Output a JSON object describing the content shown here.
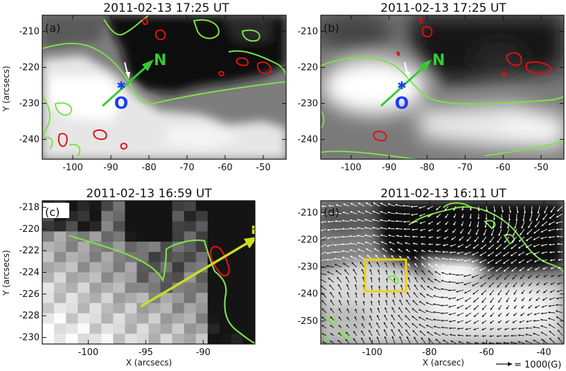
{
  "colors": {
    "contour_green": "#7ee04a",
    "contour_red": "#e01010",
    "arrow_green": "#33cc33",
    "arrow_yellow": "#ccdd22",
    "marker_blue": "#1a3cff",
    "box_yellow": "#f5d000",
    "vector_white": "#ffffff",
    "vector_black": "#111111"
  },
  "panels": [
    {
      "id": "a",
      "label": "(a)",
      "title": "2011-02-13 17:25 UT",
      "ylabel": "Y (arcsecs)",
      "xlabel": "",
      "xticks": [
        "-100",
        "-90",
        "-80",
        "-70",
        "-60",
        "-50"
      ],
      "yticks": [
        "-210",
        "-220",
        "-230",
        "-240"
      ],
      "xlim": [
        -108,
        -44
      ],
      "ylim": [
        -245.5,
        -205.5
      ],
      "annotations": {
        "arrow_label": "N",
        "origin_label": "O"
      }
    },
    {
      "id": "b",
      "label": "(b)",
      "title": "2011-02-13 17:25 UT",
      "ylabel": "",
      "xlabel": "",
      "xticks": [
        "-100",
        "-90",
        "-80",
        "-70",
        "-60",
        "-50"
      ],
      "yticks": [
        "-210",
        "-220",
        "-230",
        "-240"
      ],
      "xlim": [
        -108,
        -44
      ],
      "ylim": [
        -245.5,
        -205.5
      ],
      "annotations": {
        "arrow_label": "N",
        "origin_label": "O"
      }
    },
    {
      "id": "c",
      "label": "(c)",
      "title": "2011-02-13 16:59 UT",
      "ylabel": "Y (arcsecs)",
      "xlabel": "X (arcsecs)",
      "xticks": [
        "-100",
        "-95",
        "-90"
      ],
      "yticks": [
        "-218",
        "-220",
        "-222",
        "-224",
        "-226",
        "-228",
        "-230"
      ],
      "xlim": [
        -104,
        -85.5
      ],
      "ylim": [
        -230.6,
        -217.4
      ],
      "annotations": {
        "arrow_label": "n"
      }
    },
    {
      "id": "d",
      "label": "(d)",
      "title": "2011-02-13 16:11 UT",
      "ylabel": "",
      "xlabel": "X (arcsec)",
      "xticks": [
        "-100",
        "-80",
        "-60",
        "-40"
      ],
      "yticks": [
        "-210",
        "-220",
        "-230",
        "-240",
        "-250"
      ],
      "xlim": [
        -118,
        -33
      ],
      "ylim": [
        -258.5,
        -205.5
      ],
      "vector_scale_label": "= 1000(G)"
    }
  ]
}
